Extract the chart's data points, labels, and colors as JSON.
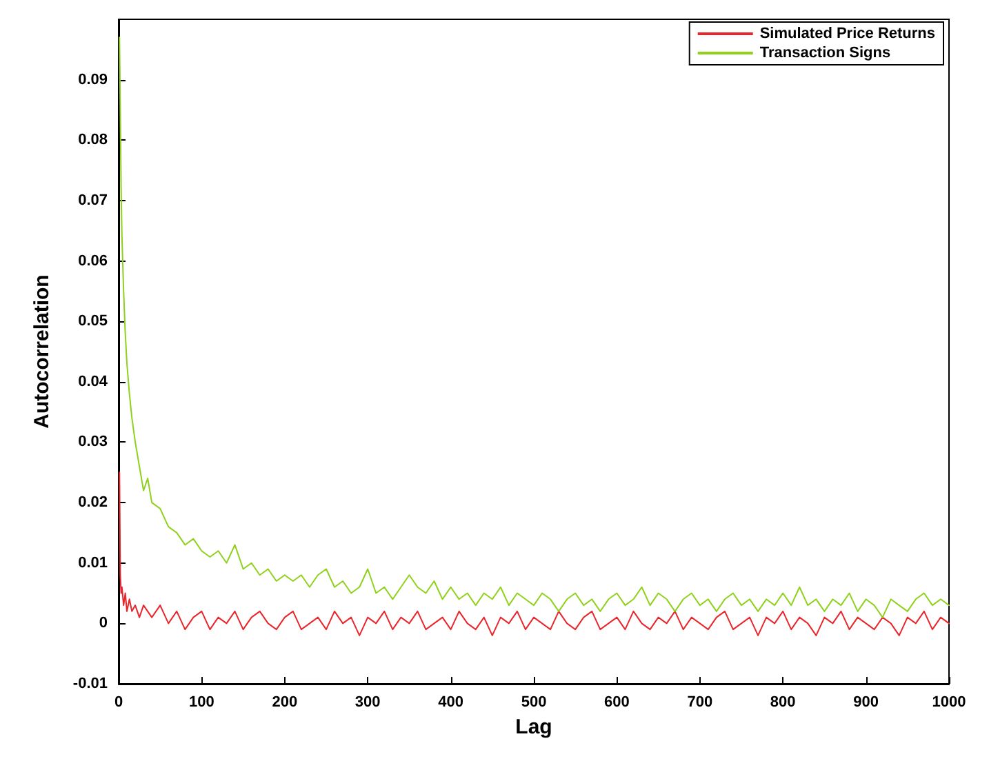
{
  "chart_data": {
    "type": "line",
    "xlabel": "Lag",
    "ylabel": "Autocorrelation",
    "x": [
      1,
      2,
      3,
      4,
      6,
      8,
      10,
      13,
      16,
      20,
      25,
      30,
      35,
      40,
      50,
      60,
      70,
      80,
      90,
      100,
      110,
      120,
      130,
      140,
      150,
      160,
      170,
      180,
      190,
      200,
      210,
      220,
      230,
      240,
      250,
      260,
      270,
      280,
      290,
      300,
      310,
      320,
      330,
      340,
      350,
      360,
      370,
      380,
      390,
      400,
      410,
      420,
      430,
      440,
      450,
      460,
      470,
      480,
      490,
      500,
      510,
      520,
      530,
      540,
      550,
      560,
      570,
      580,
      590,
      600,
      610,
      620,
      630,
      640,
      650,
      660,
      670,
      680,
      690,
      700,
      710,
      720,
      730,
      740,
      750,
      760,
      770,
      780,
      790,
      800,
      810,
      820,
      830,
      840,
      850,
      860,
      870,
      880,
      890,
      900,
      910,
      920,
      930,
      940,
      950,
      960,
      970,
      980,
      990,
      1000
    ],
    "series": [
      {
        "name": "Simulated Price Returns",
        "color": "#e8262b",
        "values": [
          0.025,
          0.008,
          0.005,
          0.006,
          0.003,
          0.005,
          0.002,
          0.004,
          0.002,
          0.003,
          0.001,
          0.003,
          0.002,
          0.001,
          0.003,
          0,
          0.002,
          -0.001,
          0.001,
          0.002,
          -0.001,
          0.001,
          0,
          0.002,
          -0.001,
          0.001,
          0.002,
          0,
          -0.001,
          0.001,
          0.002,
          -0.001,
          0,
          0.001,
          -0.001,
          0.002,
          0,
          0.001,
          -0.002,
          0.001,
          0,
          0.002,
          -0.001,
          0.001,
          0,
          0.002,
          -0.001,
          0,
          0.001,
          -0.001,
          0.002,
          0,
          -0.001,
          0.001,
          -0.002,
          0.001,
          0,
          0.002,
          -0.001,
          0.001,
          0,
          -0.001,
          0.002,
          0,
          -0.001,
          0.001,
          0.002,
          -0.001,
          0,
          0.001,
          -0.001,
          0.002,
          0,
          -0.001,
          0.001,
          0,
          0.002,
          -0.001,
          0.001,
          0,
          -0.001,
          0.001,
          0.002,
          -0.001,
          0,
          0.001,
          -0.002,
          0.001,
          0,
          0.002,
          -0.001,
          0.001,
          0,
          -0.002,
          0.001,
          0,
          0.002,
          -0.001,
          0.001,
          0,
          -0.001,
          0.001,
          0,
          -0.002,
          0.001,
          0,
          0.002,
          -0.001,
          0.001,
          0
        ]
      },
      {
        "name": "Transaction Signs",
        "color": "#8fd11c",
        "values": [
          0.097,
          0.085,
          0.072,
          0.064,
          0.055,
          0.048,
          0.043,
          0.038,
          0.034,
          0.03,
          0.026,
          0.022,
          0.024,
          0.02,
          0.019,
          0.016,
          0.015,
          0.013,
          0.014,
          0.012,
          0.011,
          0.012,
          0.01,
          0.013,
          0.009,
          0.01,
          0.008,
          0.009,
          0.007,
          0.008,
          0.007,
          0.008,
          0.006,
          0.008,
          0.009,
          0.006,
          0.007,
          0.005,
          0.006,
          0.009,
          0.005,
          0.006,
          0.004,
          0.006,
          0.008,
          0.006,
          0.005,
          0.007,
          0.004,
          0.006,
          0.004,
          0.005,
          0.003,
          0.005,
          0.004,
          0.006,
          0.003,
          0.005,
          0.004,
          0.003,
          0.005,
          0.004,
          0.002,
          0.004,
          0.005,
          0.003,
          0.004,
          0.002,
          0.004,
          0.005,
          0.003,
          0.004,
          0.006,
          0.003,
          0.005,
          0.004,
          0.002,
          0.004,
          0.005,
          0.003,
          0.004,
          0.002,
          0.004,
          0.005,
          0.003,
          0.004,
          0.002,
          0.004,
          0.003,
          0.005,
          0.003,
          0.006,
          0.003,
          0.004,
          0.002,
          0.004,
          0.003,
          0.005,
          0.002,
          0.004,
          0.003,
          0.001,
          0.004,
          0.003,
          0.002,
          0.004,
          0.005,
          0.003,
          0.004,
          0.003
        ]
      }
    ],
    "xlim": [
      0,
      1000
    ],
    "xticks": [
      0,
      100,
      200,
      300,
      400,
      500,
      600,
      700,
      800,
      900,
      1000
    ],
    "ylim": [
      -0.01,
      0.1
    ],
    "yticks": [
      -0.01,
      0,
      0.01,
      0.02,
      0.03,
      0.04,
      0.05,
      0.06,
      0.07,
      0.08,
      0.09
    ],
    "grid": false,
    "legend": "top right",
    "marker": "none",
    "line_style": "solid"
  }
}
